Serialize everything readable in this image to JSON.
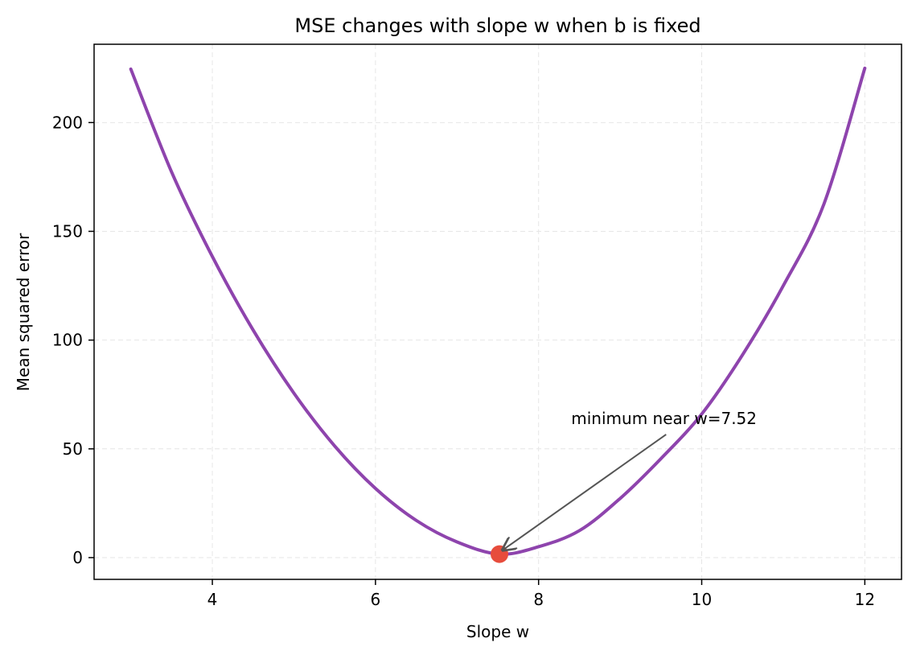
{
  "chart_data": {
    "type": "line",
    "title": "MSE changes with slope w when b is fixed",
    "xlabel": "Slope w",
    "ylabel": "Mean squared error",
    "xlim": [
      2.55,
      12.45
    ],
    "ylim": [
      -10,
      236
    ],
    "xticks": [
      4,
      6,
      8,
      10,
      12
    ],
    "yticks": [
      0,
      50,
      100,
      150,
      200
    ],
    "grid": true,
    "series": [
      {
        "x": [
          3.0,
          3.5,
          4.0,
          4.5,
          5.0,
          5.5,
          6.0,
          6.5,
          7.0,
          7.52,
          8.0,
          8.5,
          9.0,
          9.5,
          10.0,
          10.5,
          11.0,
          11.5,
          12.0
        ],
        "y": [
          224.6,
          177.3,
          138.4,
          104.6,
          75.6,
          51.3,
          31.8,
          17.1,
          7.2,
          1.6,
          5.0,
          12.4,
          27.2,
          45.5,
          66.0,
          93.2,
          125.0,
          162.7,
          225.0
        ],
        "color": "#8e44ad"
      }
    ],
    "markers": [
      {
        "x": 7.52,
        "y": 1.6,
        "color": "#e74c3c"
      }
    ],
    "annotations": [
      {
        "text": "minimum near w=7.52",
        "x": 7.52,
        "y": 1.6,
        "text_x": 8.4,
        "text_y": 64
      }
    ]
  },
  "colors": {
    "line": "#8e44ad",
    "marker": "#e74c3c",
    "arrow": "#555555",
    "grid": "#e6e6e6"
  }
}
